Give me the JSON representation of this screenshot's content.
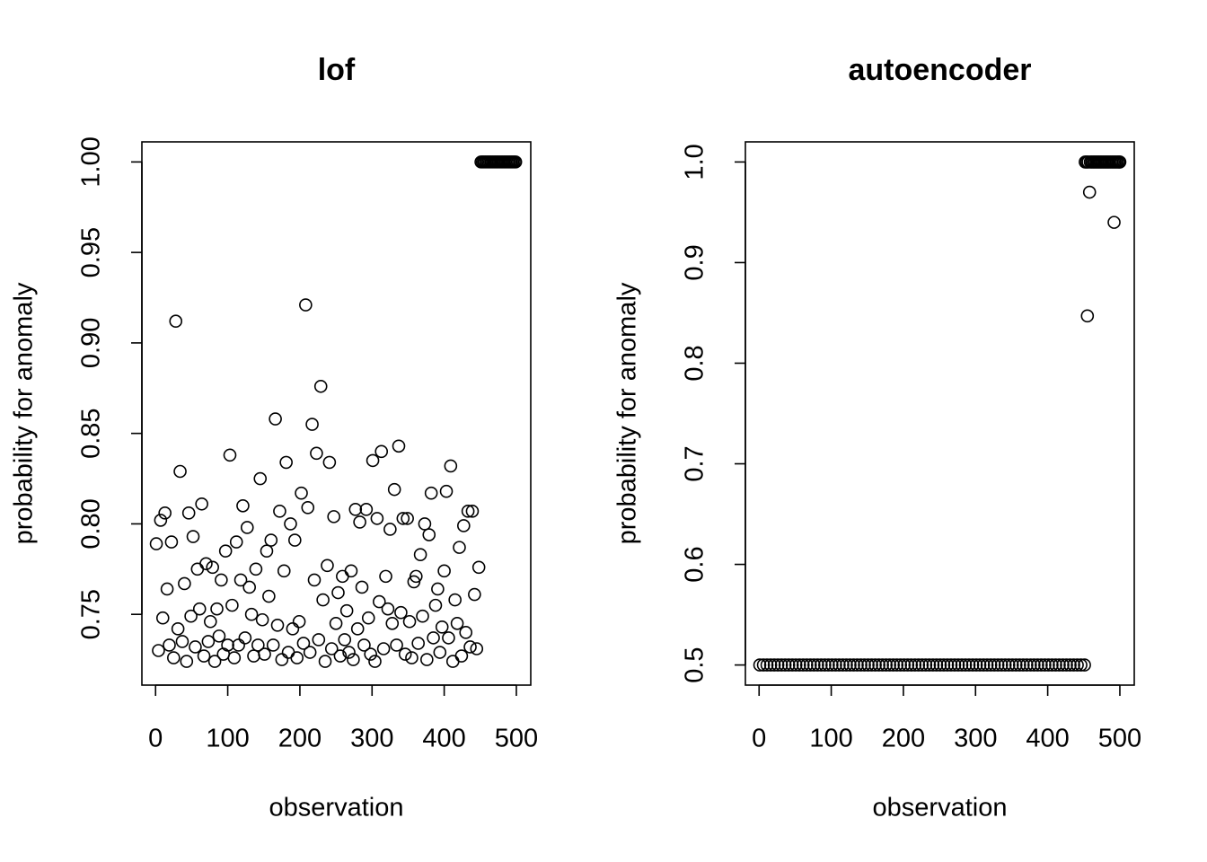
{
  "chart_data": [
    {
      "type": "scatter",
      "title": "lof",
      "x_label": "observation",
      "y_label": "probability for anomaly",
      "color": "#000000",
      "x": [
        1,
        4,
        7,
        10,
        13,
        16,
        19,
        22,
        25,
        28,
        31,
        34,
        37,
        40,
        43,
        46,
        49,
        52,
        55,
        58,
        61,
        64,
        67,
        70,
        73,
        76,
        79,
        82,
        85,
        88,
        91,
        94,
        97,
        100,
        103,
        106,
        109,
        112,
        115,
        118,
        121,
        124,
        127,
        130,
        133,
        136,
        139,
        142,
        145,
        148,
        151,
        154,
        157,
        160,
        163,
        166,
        169,
        172,
        175,
        178,
        181,
        184,
        187,
        190,
        193,
        196,
        199,
        202,
        205,
        208,
        211,
        214,
        217,
        220,
        223,
        226,
        229,
        232,
        235,
        238,
        241,
        244,
        247,
        250,
        253,
        256,
        259,
        262,
        265,
        268,
        271,
        274,
        277,
        280,
        283,
        286,
        289,
        292,
        295,
        298,
        301,
        304,
        307,
        310,
        313,
        316,
        319,
        322,
        325,
        328,
        331,
        334,
        337,
        340,
        343,
        346,
        349,
        352,
        355,
        358,
        361,
        364,
        367,
        370,
        373,
        376,
        379,
        382,
        385,
        388,
        391,
        394,
        397,
        400,
        403,
        406,
        409,
        412,
        415,
        418,
        421,
        424,
        427,
        430,
        433,
        436,
        439,
        442,
        445,
        448,
        451,
        453,
        455,
        457,
        459,
        461,
        463,
        465,
        467,
        469,
        471,
        473,
        475,
        477,
        479,
        481,
        483,
        485,
        487,
        489,
        491,
        493,
        495,
        497,
        499
      ],
      "values": [
        0.789,
        0.73,
        0.802,
        0.748,
        0.806,
        0.764,
        0.733,
        0.79,
        0.726,
        0.912,
        0.742,
        0.829,
        0.735,
        0.767,
        0.724,
        0.806,
        0.749,
        0.793,
        0.732,
        0.775,
        0.753,
        0.811,
        0.727,
        0.778,
        0.735,
        0.746,
        0.776,
        0.724,
        0.753,
        0.738,
        0.769,
        0.728,
        0.785,
        0.733,
        0.838,
        0.755,
        0.726,
        0.79,
        0.733,
        0.769,
        0.81,
        0.737,
        0.798,
        0.765,
        0.75,
        0.727,
        0.775,
        0.733,
        0.825,
        0.747,
        0.728,
        0.785,
        0.76,
        0.791,
        0.733,
        0.858,
        0.744,
        0.807,
        0.725,
        0.774,
        0.834,
        0.729,
        0.8,
        0.742,
        0.791,
        0.726,
        0.746,
        0.817,
        0.734,
        0.921,
        0.809,
        0.729,
        0.855,
        0.769,
        0.839,
        0.736,
        0.876,
        0.758,
        0.724,
        0.777,
        0.834,
        0.731,
        0.804,
        0.745,
        0.762,
        0.727,
        0.771,
        0.736,
        0.752,
        0.729,
        0.774,
        0.725,
        0.808,
        0.742,
        0.801,
        0.765,
        0.733,
        0.808,
        0.748,
        0.728,
        0.835,
        0.724,
        0.803,
        0.757,
        0.84,
        0.731,
        0.771,
        0.753,
        0.797,
        0.745,
        0.819,
        0.733,
        0.843,
        0.751,
        0.803,
        0.728,
        0.803,
        0.746,
        0.726,
        0.768,
        0.771,
        0.734,
        0.783,
        0.749,
        0.8,
        0.725,
        0.794,
        0.817,
        0.737,
        0.755,
        0.764,
        0.729,
        0.743,
        0.774,
        0.818,
        0.737,
        0.832,
        0.724,
        0.758,
        0.745,
        0.787,
        0.727,
        0.799,
        0.74,
        0.807,
        0.732,
        0.807,
        0.761,
        0.731,
        0.776,
        1,
        1,
        1,
        1,
        1,
        1,
        1,
        1,
        1,
        1,
        1,
        1,
        1,
        1,
        1,
        1,
        1,
        1,
        1,
        1,
        1,
        1,
        1,
        1,
        1
      ],
      "xlim": [
        -18.96,
        519.96
      ],
      "ylim": [
        0.7109,
        1.0111
      ],
      "xticks": [
        0,
        100,
        200,
        300,
        400,
        500
      ],
      "yticks": [
        0.75,
        {
          "value": 0.8,
          "label": "0.80"
        },
        0.85,
        {
          "value": 0.9,
          "label": "0.90"
        },
        0.95,
        {
          "value": 1.0,
          "label": "1.00"
        }
      ]
    },
    {
      "type": "scatter",
      "title": "autoencoder",
      "x_label": "observation",
      "y_label": "probability for anomaly",
      "color": "#000000",
      "x": [
        1,
        6,
        11,
        16,
        21,
        26,
        31,
        36,
        41,
        46,
        51,
        56,
        61,
        66,
        71,
        76,
        81,
        86,
        91,
        96,
        101,
        106,
        111,
        116,
        121,
        126,
        131,
        136,
        141,
        146,
        151,
        156,
        161,
        166,
        171,
        176,
        181,
        186,
        191,
        196,
        201,
        206,
        211,
        216,
        221,
        226,
        231,
        236,
        241,
        246,
        251,
        256,
        261,
        266,
        271,
        276,
        281,
        286,
        291,
        296,
        301,
        306,
        311,
        316,
        321,
        326,
        331,
        336,
        341,
        346,
        351,
        356,
        361,
        366,
        371,
        376,
        381,
        386,
        391,
        396,
        401,
        406,
        411,
        416,
        421,
        426,
        431,
        436,
        441,
        446,
        451,
        452,
        454,
        455,
        456,
        458,
        459,
        461,
        463,
        465,
        467,
        469,
        471,
        473,
        475,
        477,
        479,
        481,
        483,
        485,
        487,
        489,
        491,
        492,
        493,
        495,
        497,
        499,
        500
      ],
      "values": [
        0.5,
        0.5,
        0.5,
        0.5,
        0.5,
        0.5,
        0.5,
        0.5,
        0.5,
        0.5,
        0.5,
        0.5,
        0.5,
        0.5,
        0.5,
        0.5,
        0.5,
        0.5,
        0.5,
        0.5,
        0.5,
        0.5,
        0.5,
        0.5,
        0.5,
        0.5,
        0.5,
        0.5,
        0.5,
        0.5,
        0.5,
        0.5,
        0.5,
        0.5,
        0.5,
        0.5,
        0.5,
        0.5,
        0.5,
        0.5,
        0.5,
        0.5,
        0.5,
        0.5,
        0.5,
        0.5,
        0.5,
        0.5,
        0.5,
        0.5,
        0.5,
        0.5,
        0.5,
        0.5,
        0.5,
        0.5,
        0.5,
        0.5,
        0.5,
        0.5,
        0.5,
        0.5,
        0.5,
        0.5,
        0.5,
        0.5,
        0.5,
        0.5,
        0.5,
        0.5,
        0.5,
        0.5,
        0.5,
        0.5,
        0.5,
        0.5,
        0.5,
        0.5,
        0.5,
        0.5,
        0.5,
        0.5,
        0.5,
        0.5,
        0.5,
        0.5,
        0.5,
        0.5,
        0.5,
        0.5,
        0.5,
        1,
        1,
        0.847,
        1,
        0.97,
        1,
        1,
        1,
        1,
        1,
        1,
        1,
        1,
        1,
        1,
        1,
        1,
        1,
        1,
        1,
        1,
        1,
        0.94,
        1,
        1,
        1,
        1,
        1
      ],
      "xlim": [
        -18.96,
        519.96
      ],
      "ylim": [
        0.48,
        1.02
      ],
      "xticks": [
        0,
        100,
        200,
        300,
        400,
        500
      ],
      "yticks": [
        0.5,
        0.6,
        0.7,
        0.8,
        0.9,
        {
          "value": 1.0,
          "label": "1.0"
        }
      ]
    }
  ]
}
